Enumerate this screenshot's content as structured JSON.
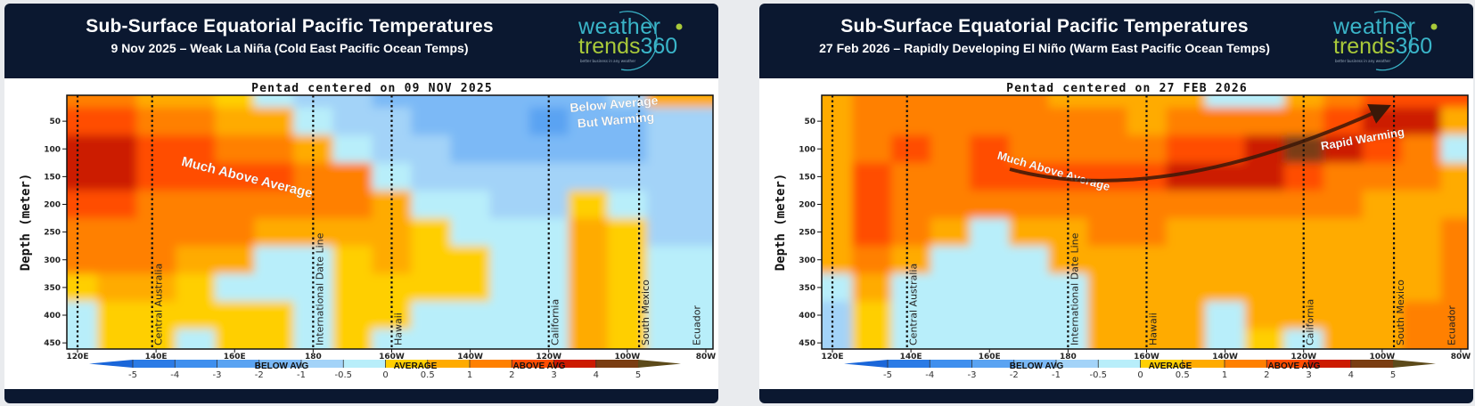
{
  "logo": {
    "word1": "weather",
    "word2": "trends",
    "number": "360",
    "tagline": "better business in any weather",
    "colors": {
      "teal": "#3ab5c9",
      "lime": "#a9c93a"
    }
  },
  "colors": {
    "header": "#0b1830",
    "page": "#e9ebee"
  },
  "colorbar": {
    "levels": [
      -5,
      -4,
      -3,
      -2,
      -1,
      -0.5,
      0,
      0.5,
      1,
      2,
      3,
      4,
      5
    ],
    "tick_labels": [
      "-5",
      "-4",
      "-3",
      "-2",
      "-1",
      "-0.5",
      "0",
      "0.5",
      "1",
      "2",
      "3",
      "4",
      "5"
    ],
    "colors": [
      "#1a66d9",
      "#2b7be6",
      "#3f8fee",
      "#5aa3f2",
      "#7bb9f6",
      "#a3d3f8",
      "#b8eefa",
      "#ffcf00",
      "#ffab00",
      "#ff8000",
      "#ff4d00",
      "#cc1a00",
      "#7a3d12",
      "#5c4a1a"
    ],
    "labels": {
      "below": "BELOW AVG",
      "average": "AVERAGE",
      "above": "ABOVE AVG"
    }
  },
  "panels": [
    {
      "title": "Sub-Surface Equatorial Pacific Temperatures",
      "subtitle": "9 Nov 2025 – Weak La Niña (Cold East Pacific Ocean  Temps)"
    },
    {
      "title": "Sub-Surface Equatorial Pacific Temperatures",
      "subtitle": "27 Feb 2026 – Rapidly Developing El Niño (Warm East Pacific Ocean Temps)"
    }
  ],
  "chart_data": [
    {
      "type": "heatmap",
      "title": "Pentad centered on 09 NOV 2025",
      "ylabel": "Depth (meter)",
      "x_ticks": [
        "120E",
        "140E",
        "160E",
        "180",
        "160W",
        "140W",
        "120W",
        "100W",
        "80W"
      ],
      "y_ticks": [
        50,
        100,
        150,
        200,
        250,
        300,
        350,
        400,
        450
      ],
      "ylim": [
        450,
        0
      ],
      "depths": [
        0,
        50,
        100,
        150,
        200,
        250,
        300,
        350,
        400,
        450
      ],
      "columns": [
        {
          "lon": "120E",
          "anomaly": [
            1,
            2,
            3.5,
            3,
            2,
            1.5,
            1,
            0.3,
            -0.3,
            -0.3
          ]
        },
        {
          "lon": "130E",
          "anomaly": [
            1,
            2,
            3.5,
            3,
            2,
            1.5,
            1.2,
            0.8,
            0.3,
            0.3
          ]
        },
        {
          "lon": "140E",
          "anomaly": [
            0.5,
            1.5,
            2,
            2,
            1.5,
            1.2,
            1,
            0.5,
            0.3,
            0.3
          ]
        },
        {
          "lon": "150E",
          "anomaly": [
            0.5,
            1,
            2,
            2,
            1.5,
            1,
            0.5,
            0.3,
            0.3,
            -0.3
          ]
        },
        {
          "lon": "160E",
          "anomaly": [
            0.3,
            0.8,
            1.5,
            2,
            1.5,
            1,
            0.5,
            -0.3,
            0.3,
            0.3
          ]
        },
        {
          "lon": "170E",
          "anomaly": [
            -0.3,
            0.5,
            1.2,
            2,
            1.5,
            0.8,
            -0.3,
            -0.3,
            0.3,
            0.3
          ]
        },
        {
          "lon": "180",
          "anomaly": [
            -0.8,
            -0.3,
            0.8,
            1.5,
            1.2,
            0.5,
            -0.3,
            -0.3,
            -0.3,
            -0.3
          ]
        },
        {
          "lon": "170W",
          "anomaly": [
            -1,
            -0.8,
            -0.3,
            1,
            1,
            0.5,
            0.3,
            0.3,
            0.3,
            0.3
          ]
        },
        {
          "lon": "160W",
          "anomaly": [
            -1.5,
            -1,
            -0.8,
            -0.3,
            0.6,
            0.5,
            0.5,
            0.3,
            0.3,
            -0.3
          ]
        },
        {
          "lon": "150W",
          "anomaly": [
            -1.5,
            -1.2,
            -1,
            -0.8,
            -0.3,
            0.3,
            0.3,
            0.3,
            -0.3,
            -0.3
          ]
        },
        {
          "lon": "140W",
          "anomaly": [
            -1.5,
            -1.5,
            -2,
            -1,
            -0.3,
            -0.3,
            0.3,
            0.3,
            -0.3,
            -0.3
          ]
        },
        {
          "lon": "130W",
          "anomaly": [
            -1.5,
            -2,
            -2,
            -1,
            -0.8,
            -0.3,
            -0.3,
            -0.3,
            -0.3,
            -0.3
          ]
        },
        {
          "lon": "120W",
          "anomaly": [
            -1.5,
            -2.5,
            -2,
            -1,
            -0.8,
            -0.3,
            -0.3,
            -0.3,
            -0.3,
            -0.3
          ]
        },
        {
          "lon": "110W",
          "anomaly": [
            -1.5,
            -2,
            -1.5,
            -0.8,
            0.3,
            0.5,
            0.5,
            0.5,
            0.5,
            0.5
          ]
        },
        {
          "lon": "100W",
          "anomaly": [
            -1,
            -1.5,
            -1.5,
            -0.8,
            -0.3,
            0.3,
            0.3,
            0.3,
            0.3,
            0.3
          ]
        },
        {
          "lon": "90W",
          "anomaly": [
            0.5,
            -1,
            -1,
            -0.8,
            -0.8,
            -0.8,
            -0.3,
            -0.3,
            -0.3,
            -0.3
          ]
        },
        {
          "lon": "80W",
          "anomaly": [
            0.8,
            -0.8,
            -1,
            -0.8,
            -0.8,
            -0.8,
            -0.3,
            -0.3,
            -0.3,
            -0.3
          ]
        }
      ],
      "reference_lines": [
        {
          "label": "",
          "lon_deg_east": 120
        },
        {
          "label": "Central Australia",
          "lon_deg_east": 139
        },
        {
          "label": "International Date Line",
          "lon_deg_east": 180
        },
        {
          "label": "Hawaii",
          "lon_deg_east": 200
        },
        {
          "label": "California",
          "lon_deg_east": 240
        },
        {
          "label": "South Mexico",
          "lon_deg_east": 263
        },
        {
          "label": "Ecuador",
          "lon_deg_east": 276,
          "no_line": true
        }
      ],
      "annotations": [
        "Much Above Average",
        "Below Average",
        "But Warming"
      ]
    },
    {
      "type": "heatmap",
      "title": "Pentad centered on 27 FEB 2026",
      "ylabel": "Depth (meter)",
      "x_ticks": [
        "120E",
        "140E",
        "160E",
        "180",
        "160W",
        "140W",
        "120W",
        "100W",
        "80W"
      ],
      "y_ticks": [
        50,
        100,
        150,
        200,
        250,
        300,
        350,
        400,
        450
      ],
      "ylim": [
        450,
        0
      ],
      "depths": [
        0,
        50,
        100,
        150,
        200,
        250,
        300,
        350,
        400,
        450
      ],
      "columns": [
        {
          "lon": "120E",
          "anomaly": [
            0.5,
            0.8,
            0.8,
            0.8,
            0.8,
            0.8,
            0.6,
            -0.3,
            -0.8,
            -0.8
          ]
        },
        {
          "lon": "130E",
          "anomaly": [
            1,
            1.5,
            1.5,
            2,
            2,
            2,
            1.5,
            0.8,
            0.3,
            0.3
          ]
        },
        {
          "lon": "140E",
          "anomaly": [
            1,
            1,
            2,
            1.5,
            1,
            1,
            0.5,
            -0.3,
            -0.3,
            -0.3
          ]
        },
        {
          "lon": "150E",
          "anomaly": [
            1,
            1.5,
            1.5,
            1.5,
            1,
            0.5,
            -0.3,
            -0.3,
            -0.3,
            -0.3
          ]
        },
        {
          "lon": "160E",
          "anomaly": [
            1,
            1.2,
            2,
            2,
            1,
            -0.3,
            -0.3,
            -0.3,
            -0.3,
            -0.3
          ]
        },
        {
          "lon": "170E",
          "anomaly": [
            1,
            1.2,
            1.5,
            2,
            1,
            0.5,
            -0.3,
            -0.3,
            -0.3,
            -0.3
          ]
        },
        {
          "lon": "180",
          "anomaly": [
            0.8,
            1,
            1.5,
            2.5,
            1.2,
            0.8,
            0.5,
            -0.3,
            -0.3,
            -0.3
          ]
        },
        {
          "lon": "170W",
          "anomaly": [
            0.8,
            1,
            1.5,
            2.5,
            1.5,
            1,
            0.5,
            0.5,
            0.5,
            0.5
          ]
        },
        {
          "lon": "160W",
          "anomaly": [
            0.5,
            0.8,
            1.5,
            2.5,
            1.5,
            1,
            0.5,
            0.5,
            0.5,
            0.5
          ]
        },
        {
          "lon": "150W",
          "anomaly": [
            0.5,
            1,
            2,
            3,
            1.5,
            0.8,
            0.5,
            0.5,
            0.5,
            0.5
          ]
        },
        {
          "lon": "140W",
          "anomaly": [
            -0.3,
            1,
            2.5,
            3,
            1.5,
            0.8,
            0.5,
            0.5,
            -0.3,
            -0.3
          ]
        },
        {
          "lon": "130W",
          "anomaly": [
            -0.3,
            1.2,
            3.5,
            3,
            1.5,
            0.8,
            0.5,
            0.5,
            0.5,
            0.3
          ]
        },
        {
          "lon": "120W",
          "anomaly": [
            0.5,
            1.5,
            4.2,
            2.5,
            1.2,
            0.8,
            0.5,
            0.5,
            0.5,
            -0.3
          ]
        },
        {
          "lon": "110W",
          "anomaly": [
            1,
            2,
            3,
            1.5,
            1,
            0.8,
            0.5,
            0.5,
            0.5,
            0.5
          ]
        },
        {
          "lon": "100W",
          "anomaly": [
            2,
            3,
            2,
            1.2,
            0.8,
            0.5,
            0.5,
            0.5,
            0.5,
            0.8
          ]
        },
        {
          "lon": "90W",
          "anomaly": [
            2.5,
            3,
            1.5,
            1,
            0.8,
            0.8,
            0.8,
            0.8,
            1,
            1.2
          ]
        },
        {
          "lon": "80W",
          "anomaly": [
            2,
            0.8,
            -0.3,
            0.5,
            0.8,
            1,
            1,
            1,
            1.2,
            1.2
          ]
        }
      ],
      "reference_lines": [
        {
          "label": "",
          "lon_deg_east": 120
        },
        {
          "label": "Central Australia",
          "lon_deg_east": 139
        },
        {
          "label": "International Date Line",
          "lon_deg_east": 180
        },
        {
          "label": "Hawaii",
          "lon_deg_east": 200
        },
        {
          "label": "California",
          "lon_deg_east": 240
        },
        {
          "label": "South Mexico",
          "lon_deg_east": 263
        },
        {
          "label": "Ecuador",
          "lon_deg_east": 276,
          "no_line": true
        }
      ],
      "annotations": [
        "Much Above Average",
        "Rapid Warming"
      ]
    }
  ]
}
